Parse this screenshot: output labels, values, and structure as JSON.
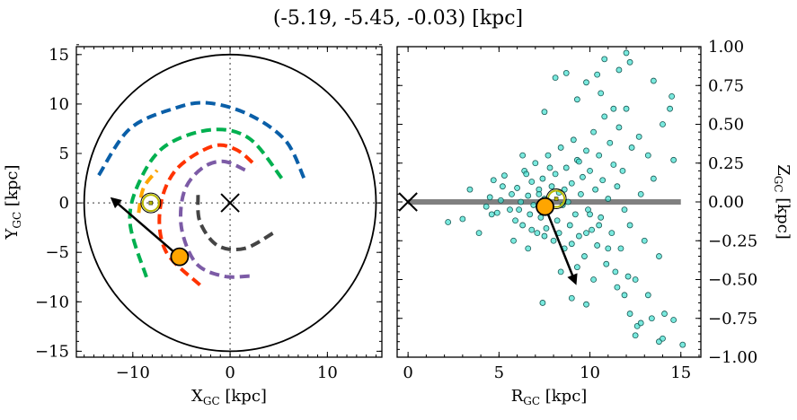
{
  "chart_data": [
    {
      "type": "line",
      "title": "(-5.19, -5.45, -0.03) [kpc]",
      "xlabel": "X_GC [kpc]",
      "ylabel": "Y_GC [kpc]",
      "xlim": [
        -15.8,
        15.6
      ],
      "ylim": [
        -15.6,
        15.8
      ],
      "xticks": [
        -10,
        0,
        10
      ],
      "yticks": [
        -15,
        -10,
        -5,
        0,
        5,
        10,
        15
      ],
      "xtick_labels": [
        "−10",
        "0",
        "10"
      ],
      "ytick_labels": [
        "−15",
        "−10",
        "−5",
        "0",
        "5",
        "10",
        "15"
      ],
      "boundary_circle_radius": 15,
      "reference_lines": {
        "x": 0,
        "y": 0,
        "style": "dotted"
      },
      "arms": [
        {
          "color": "#0a5fa8",
          "points": [
            [
              -13.5,
              2.8
            ],
            [
              -10.3,
              7.5
            ],
            [
              -5.6,
              9.6
            ],
            [
              -2.2,
              10.1
            ],
            [
              2.0,
              8.9
            ],
            [
              5.7,
              6.3
            ],
            [
              7.6,
              2.5
            ]
          ]
        },
        {
          "color": "#00b04f",
          "points": [
            [
              -8.6,
              -7.5
            ],
            [
              -10.3,
              -1.9
            ],
            [
              -9.2,
              2.4
            ],
            [
              -6.6,
              5.8
            ],
            [
              -1.9,
              7.4
            ],
            [
              2.0,
              6.5
            ],
            [
              5.3,
              2.5
            ]
          ]
        },
        {
          "color": "#ff3300",
          "points": [
            [
              -3.1,
              -8.3
            ],
            [
              -6.6,
              -4.9
            ],
            [
              -7.2,
              -0.6
            ],
            [
              -5.6,
              3.3
            ],
            [
              -1.9,
              5.7
            ],
            [
              0.6,
              5.4
            ],
            [
              2.7,
              3.7
            ]
          ]
        },
        {
          "color": "#7c5ba6",
          "points": [
            [
              2.0,
              -7.4
            ],
            [
              -0.7,
              -7.4
            ],
            [
              -3.5,
              -6.1
            ],
            [
              -5.0,
              -2.5
            ],
            [
              -4.7,
              1.2
            ],
            [
              -2.9,
              3.5
            ],
            [
              -0.7,
              4.2
            ],
            [
              1.6,
              3.3
            ]
          ]
        },
        {
          "color": "#444444",
          "points": [
            [
              -3.3,
              0.8
            ],
            [
              -3.1,
              -1.9
            ],
            [
              -1.3,
              -4.3
            ],
            [
              1.5,
              -4.6
            ],
            [
              4.5,
              -3.0
            ]
          ]
        },
        {
          "color": "#ffa500",
          "points": [
            [
              -9.4,
              -1.0
            ],
            [
              -8.9,
              1.5
            ],
            [
              -7.5,
              3.3
            ]
          ]
        }
      ],
      "galactic_center": [
        0,
        0
      ],
      "sun": [
        -8.15,
        0
      ],
      "object": [
        -5.19,
        -5.45
      ],
      "velocity_arrow_end": [
        -12.1,
        0.4
      ]
    },
    {
      "type": "scatter",
      "xlabel": "R_GC [kpc]",
      "ylabel": "Z_GC [kpc]",
      "xlim": [
        -0.6,
        16.1
      ],
      "ylim": [
        -1.0,
        1.0
      ],
      "xticks": [
        0,
        5,
        10,
        15
      ],
      "xtick_labels": [
        "0",
        "5",
        "10",
        "15"
      ],
      "yticks": [
        -1.0,
        -0.75,
        -0.5,
        -0.25,
        0.0,
        0.25,
        0.5,
        0.75,
        1.0
      ],
      "ytick_labels": [
        "−1.00",
        "−0.75",
        "−0.50",
        "−0.25",
        "0.00",
        "0.25",
        "0.50",
        "0.75",
        "1.00"
      ],
      "point_color": "#40e0d0",
      "plane_line": {
        "from": 0,
        "to": 15,
        "z": 0,
        "color": "#808080"
      },
      "galactic_center": [
        0,
        0
      ],
      "sun": [
        8.15,
        0.02
      ],
      "object": [
        7.53,
        -0.03
      ],
      "velocity_arrow_end": [
        9.2,
        -0.52
      ],
      "points": [
        [
          2.2,
          -0.13
        ],
        [
          3.0,
          -0.11
        ],
        [
          3.4,
          0.08
        ],
        [
          3.9,
          -0.2
        ],
        [
          4.3,
          -0.03
        ],
        [
          4.5,
          0.03
        ],
        [
          4.7,
          0.14
        ],
        [
          4.9,
          -0.07
        ],
        [
          5.1,
          0.01
        ],
        [
          5.3,
          0.17
        ],
        [
          5.6,
          -0.05
        ],
        [
          5.7,
          0.05
        ],
        [
          5.9,
          -0.12
        ],
        [
          6.0,
          0.09
        ],
        [
          6.2,
          0.0
        ],
        [
          6.3,
          -0.15
        ],
        [
          6.4,
          0.2
        ],
        [
          6.6,
          0.04
        ],
        [
          6.7,
          -0.08
        ],
        [
          6.8,
          0.13
        ],
        [
          6.9,
          -0.02
        ],
        [
          7.0,
          0.25
        ],
        [
          7.1,
          -0.2
        ],
        [
          7.2,
          0.08
        ],
        [
          7.3,
          -0.1
        ],
        [
          7.4,
          0.15
        ],
        [
          7.5,
          0.02
        ],
        [
          7.6,
          -0.17
        ],
        [
          7.7,
          0.3
        ],
        [
          7.8,
          -0.05
        ],
        [
          7.9,
          0.1
        ],
        [
          8.0,
          -0.25
        ],
        [
          8.1,
          0.18
        ],
        [
          8.2,
          -0.12
        ],
        [
          8.3,
          0.06
        ],
        [
          8.4,
          0.35
        ],
        [
          8.5,
          -0.02
        ],
        [
          8.6,
          -0.3
        ],
        [
          8.7,
          0.22
        ],
        [
          8.8,
          0.0
        ],
        [
          8.9,
          -0.15
        ],
        [
          9.0,
          0.12
        ],
        [
          9.1,
          0.4
        ],
        [
          9.2,
          -0.08
        ],
        [
          9.3,
          0.27
        ],
        [
          9.4,
          -0.22
        ],
        [
          9.5,
          0.05
        ],
        [
          9.6,
          0.16
        ],
        [
          9.7,
          -0.35
        ],
        [
          9.8,
          0.33
        ],
        [
          9.9,
          -0.05
        ],
        [
          10.0,
          0.2
        ],
        [
          10.1,
          -0.18
        ],
        [
          10.2,
          0.45
        ],
        [
          10.3,
          0.08
        ],
        [
          10.4,
          -0.28
        ],
        [
          10.5,
          0.3
        ],
        [
          10.6,
          -0.1
        ],
        [
          10.7,
          0.14
        ],
        [
          10.8,
          0.55
        ],
        [
          10.9,
          -0.4
        ],
        [
          11.0,
          0.02
        ],
        [
          11.1,
          0.38
        ],
        [
          11.2,
          -0.2
        ],
        [
          11.3,
          0.24
        ],
        [
          11.4,
          -0.45
        ],
        [
          11.5,
          0.1
        ],
        [
          11.6,
          0.48
        ],
        [
          11.7,
          -0.3
        ],
        [
          11.8,
          0.2
        ],
        [
          11.9,
          -0.05
        ],
        [
          12.0,
          0.6
        ],
        [
          12.2,
          -0.15
        ],
        [
          12.3,
          0.35
        ],
        [
          12.5,
          -0.5
        ],
        [
          12.7,
          0.42
        ],
        [
          12.8,
          0.05
        ],
        [
          13.0,
          -0.25
        ],
        [
          13.2,
          0.3
        ],
        [
          13.5,
          0.15
        ],
        [
          13.8,
          -0.35
        ],
        [
          14.0,
          0.5
        ],
        [
          14.4,
          0.6
        ],
        [
          14.6,
          0.27
        ],
        [
          6.5,
          0.18
        ],
        [
          7.2,
          0.05
        ],
        [
          7.8,
          0.22
        ],
        [
          8.6,
          0.08
        ],
        [
          9.4,
          0.26
        ],
        [
          10.0,
          -0.08
        ],
        [
          6.1,
          -0.05
        ],
        [
          6.8,
          -0.18
        ],
        [
          7.5,
          -0.22
        ],
        [
          8.3,
          -0.2
        ],
        [
          9.0,
          -0.27
        ],
        [
          9.8,
          -0.2
        ],
        [
          10.5,
          -0.15
        ],
        [
          11.0,
          -0.3
        ],
        [
          8.4,
          -0.45
        ],
        [
          9.3,
          -0.42
        ],
        [
          10.2,
          -0.5
        ],
        [
          11.5,
          -0.55
        ],
        [
          12.1,
          -0.48
        ],
        [
          7.4,
          -0.65
        ],
        [
          9.0,
          -0.62
        ],
        [
          9.8,
          -0.66
        ],
        [
          11.9,
          -0.6
        ],
        [
          13.2,
          -0.6
        ],
        [
          12.2,
          -0.72
        ],
        [
          12.6,
          -0.8
        ],
        [
          13.4,
          -0.75
        ],
        [
          14.1,
          -0.72
        ],
        [
          14.6,
          -0.76
        ],
        [
          13.8,
          -0.9
        ],
        [
          14.0,
          -0.88
        ],
        [
          15.1,
          -0.92
        ],
        [
          12.5,
          -0.86
        ],
        [
          12.8,
          -0.78
        ],
        [
          8.1,
          0.8
        ],
        [
          8.7,
          0.83
        ],
        [
          9.8,
          0.77
        ],
        [
          10.4,
          0.82
        ],
        [
          10.8,
          0.92
        ],
        [
          11.6,
          0.85
        ],
        [
          12.2,
          0.9
        ],
        [
          14.5,
          0.68
        ],
        [
          12.0,
          0.96
        ],
        [
          13.5,
          0.78
        ],
        [
          10.6,
          0.7
        ],
        [
          11.3,
          0.6
        ],
        [
          9.3,
          0.66
        ],
        [
          7.5,
          0.58
        ],
        [
          6.3,
          0.3
        ],
        [
          5.2,
          0.1
        ],
        [
          4.6,
          -0.08
        ],
        [
          5.8,
          -0.25
        ],
        [
          6.6,
          -0.3
        ]
      ]
    }
  ]
}
